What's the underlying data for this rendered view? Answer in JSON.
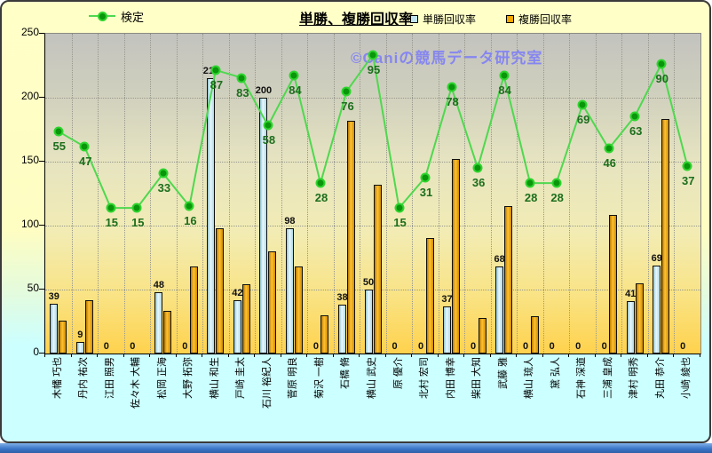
{
  "meta": {
    "title": "単勝、複勝回収率",
    "watermark": "©Caniの競馬データ研究室"
  },
  "chart_data": {
    "type": "combo-bar-line",
    "title": "単勝、複勝回収率",
    "categories": [
      "木幡 巧也",
      "丹内 祐次",
      "江田 照男",
      "佐々木 大輔",
      "松岡 正海",
      "大野 拓弥",
      "横山 和生",
      "戸崎 圭太",
      "石川 裕紀人",
      "菅原 明良",
      "菊沢 一樹",
      "石橋 脩",
      "横山 武史",
      "原 優介",
      "北村 宏司",
      "内田 博幸",
      "柴田 大知",
      "武藤 雅",
      "横山 琉人",
      "黛 弘人",
      "石神 深道",
      "三浦 皇成",
      "津村 明秀",
      "丸田 恭介",
      "小崎 綾也"
    ],
    "series": [
      {
        "name": "単勝回収率",
        "type": "bar",
        "color": "#BFE4EF",
        "values": [
          39,
          9,
          0,
          0,
          48,
          0,
          215,
          42,
          200,
          98,
          0,
          38,
          50,
          0,
          0,
          37,
          0,
          68,
          0,
          0,
          0,
          0,
          41,
          69,
          0
        ],
        "labeled": true
      },
      {
        "name": "複勝回収率",
        "type": "bar",
        "color": "#F5A800",
        "values": [
          26,
          42,
          0,
          0,
          33,
          68,
          98,
          54,
          80,
          68,
          30,
          182,
          132,
          0,
          90,
          152,
          28,
          115,
          29,
          0,
          0,
          108,
          55,
          183,
          0
        ],
        "labeled": false
      },
      {
        "name": "検定",
        "type": "line",
        "color": "#4FD84F",
        "marker_color": "#0A960A",
        "values": [
          55,
          47,
          15,
          15,
          33,
          16,
          87,
          83,
          58,
          84,
          28,
          76,
          95,
          15,
          31,
          78,
          36,
          84,
          28,
          28,
          69,
          46,
          63,
          90,
          37
        ],
        "labeled": true,
        "axis": "secondary"
      }
    ],
    "ylim": [
      0,
      250
    ],
    "yticks": [
      0,
      50,
      100,
      150,
      200,
      250
    ],
    "secondary_axis_range": [
      -61,
      106
    ],
    "grid": true,
    "legend_position": "top"
  }
}
